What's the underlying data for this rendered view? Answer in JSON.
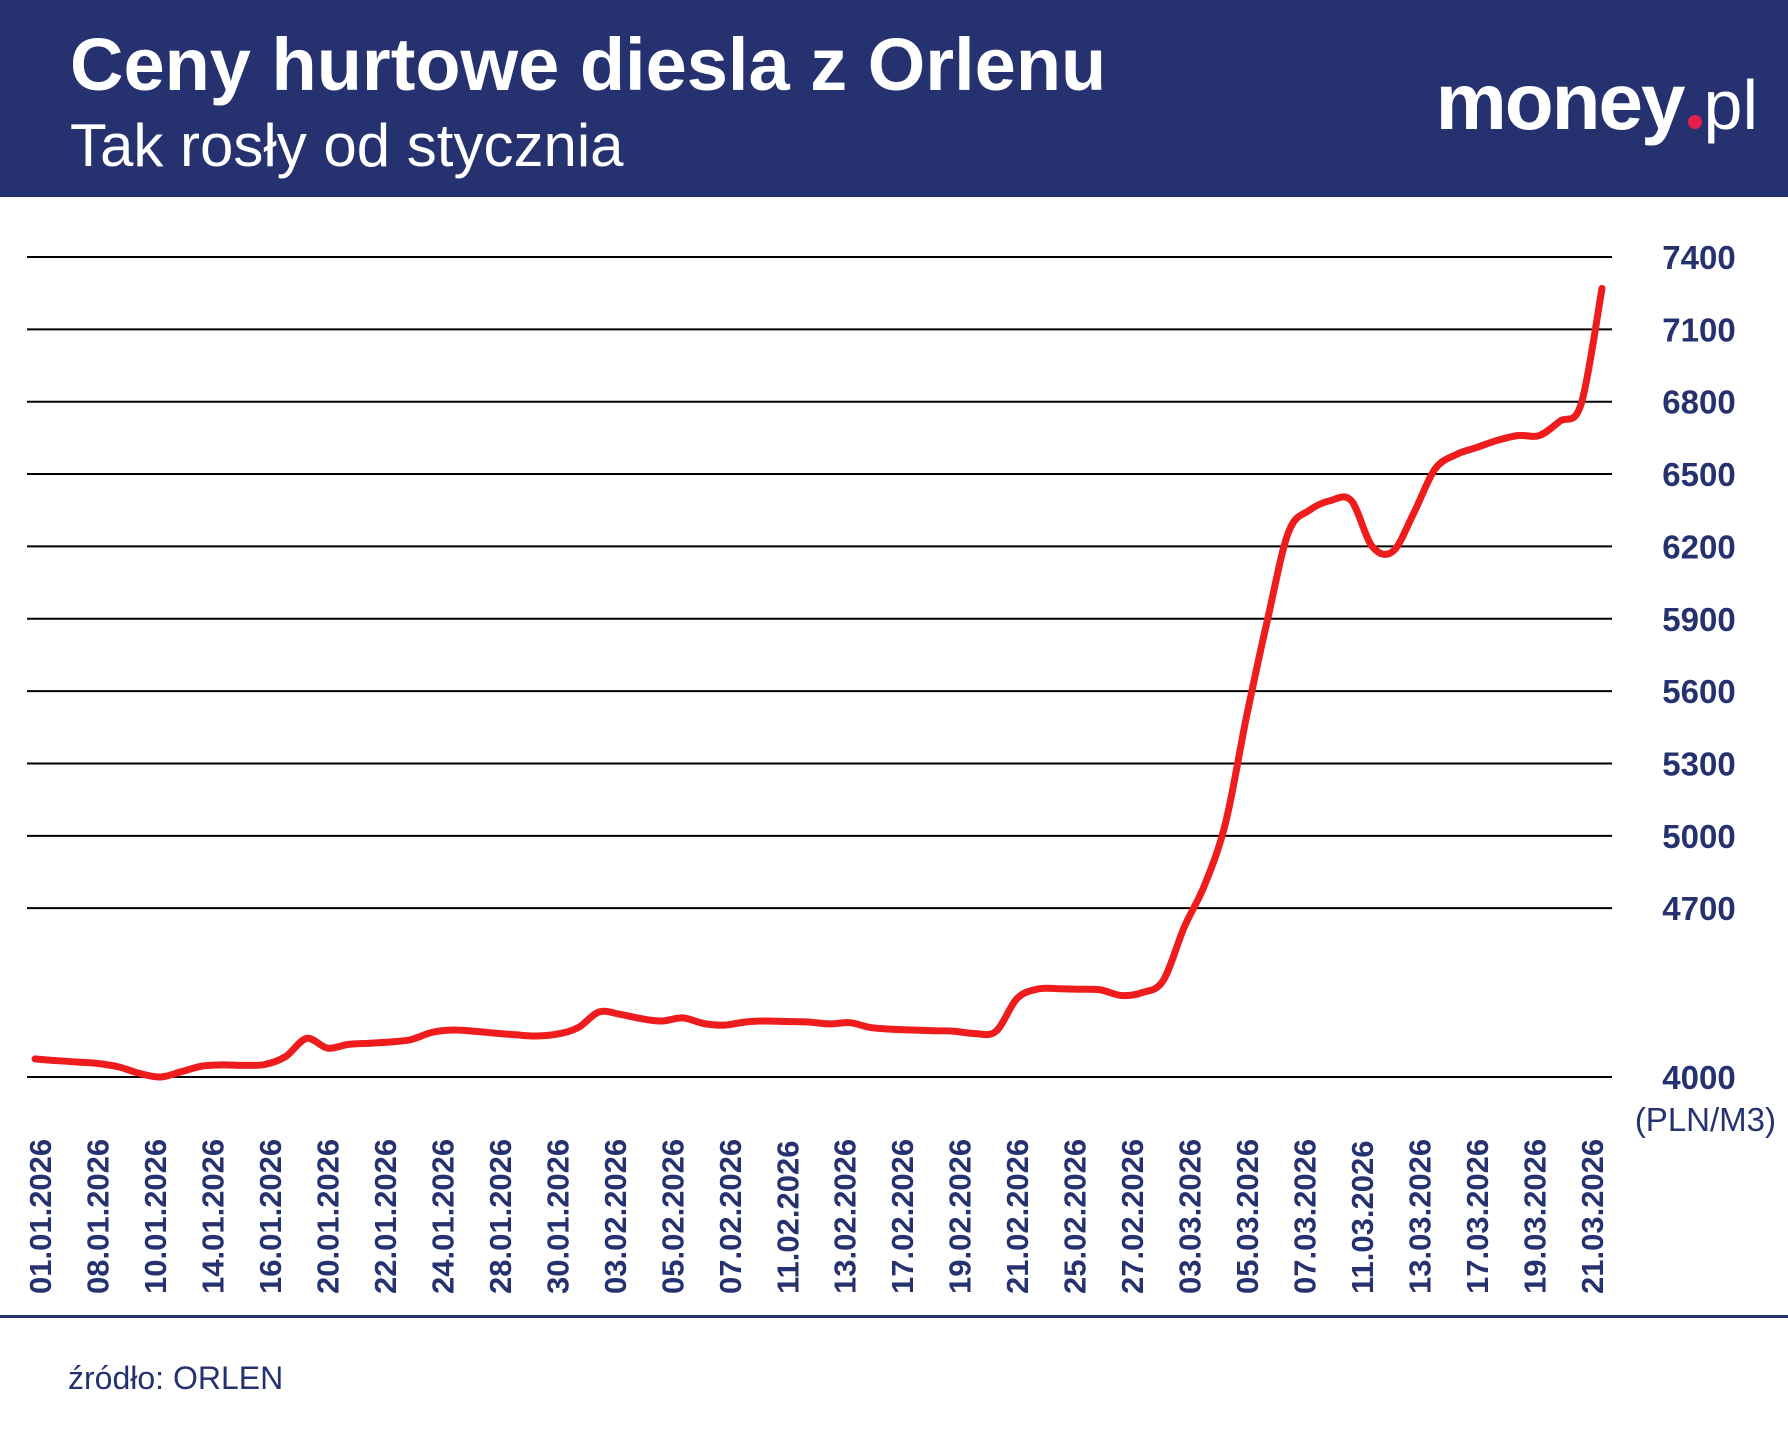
{
  "header": {
    "title": "Ceny hurtowe diesla z Orlenu",
    "subtitle": "Tak rosły od stycznia",
    "logo": {
      "word": "money",
      "tld": "pl",
      "dot_color": "#e3204b"
    },
    "background_color": "#263270"
  },
  "source": "źródło: ORLEN",
  "colors": {
    "line": "#ee1c1c",
    "text": "#263270",
    "grid": "#000000"
  },
  "chart_data": {
    "type": "line",
    "unit_label": "(PLN/M3)",
    "ylim": [
      4000,
      7400
    ],
    "yticks": [
      4000,
      4700,
      5000,
      5300,
      5600,
      5900,
      6200,
      6500,
      6800,
      7100,
      7400
    ],
    "grid": true,
    "y_axis_side": "right",
    "xtick_labels": [
      "01.01.2026",
      "08.01.2026",
      "10.01.2026",
      "14.01.2026",
      "16.01.2026",
      "20.01.2026",
      "22.01.2026",
      "24.01.2026",
      "28.01.2026",
      "30.01.2026",
      "03.02.2026",
      "05.02.2026",
      "07.02.2026",
      "11.02.2026",
      "13.02.2026",
      "17.02.2026",
      "19.02.2026",
      "21.02.2026",
      "25.02.2026",
      "27.02.2026",
      "03.03.2026",
      "05.03.2026",
      "07.03.2026",
      "11.03.2026",
      "13.03.2026",
      "17.03.2026",
      "19.03.2026",
      "21.03.2026"
    ],
    "series": [
      {
        "values": [
          4075,
          4068,
          4062,
          4056,
          4042,
          4015,
          4000,
          4022,
          4045,
          4050,
          4048,
          4052,
          4085,
          4160,
          4120,
          4135,
          4140,
          4145,
          4155,
          4185,
          4195,
          4190,
          4182,
          4175,
          4170,
          4178,
          4205,
          4270,
          4260,
          4242,
          4232,
          4245,
          4222,
          4215,
          4228,
          4232,
          4230,
          4228,
          4220,
          4225,
          4205,
          4198,
          4195,
          4192,
          4190,
          4180,
          4190,
          4325,
          4365,
          4366,
          4364,
          4361,
          4338,
          4350,
          4400,
          4620,
          4800,
          5060,
          5500,
          5900,
          6260,
          6350,
          6390,
          6390,
          6200,
          6180,
          6340,
          6520,
          6580,
          6610,
          6640,
          6660,
          6660,
          6720,
          6790,
          7270
        ]
      }
    ]
  }
}
